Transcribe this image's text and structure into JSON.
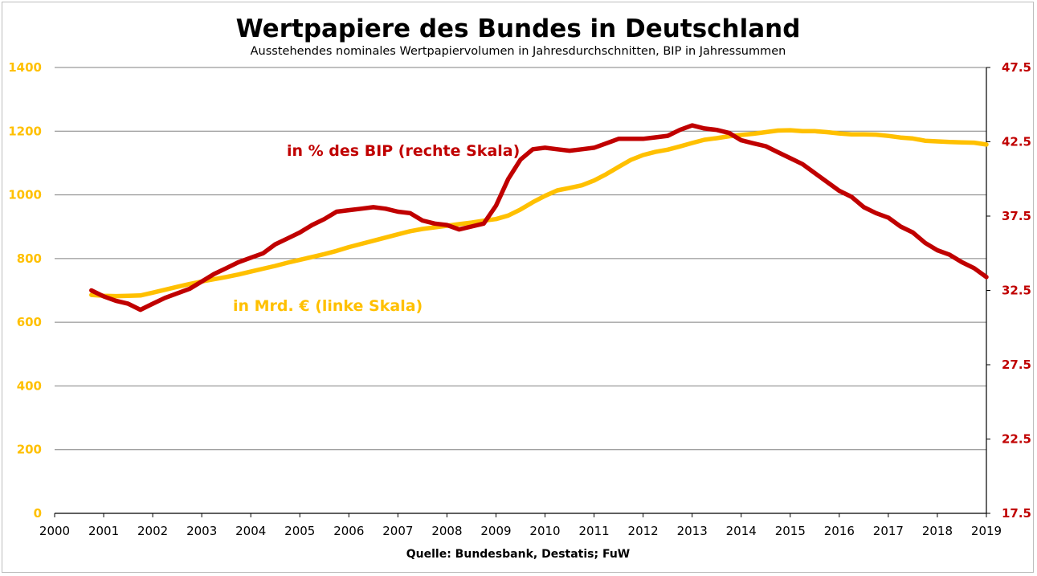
{
  "colors": {
    "left_series": "#FFC000",
    "right_series": "#C00000",
    "grid": "#808080",
    "axis": "#000000"
  },
  "chart_data": {
    "type": "line",
    "title": "Wertpapiere des Bundes in Deutschland",
    "subtitle": "Ausstehendes nominales Wertpapiervolumen in Jahresdurchschnitten, BIP in Jahressummen",
    "source": "Quelle: Bundesbank, Destatis; FuW",
    "x_ticks": [
      "2000",
      "2001",
      "2002",
      "2003",
      "2004",
      "2005",
      "2006",
      "2007",
      "2008",
      "2009",
      "2010",
      "2011",
      "2012",
      "2013",
      "2014",
      "2015",
      "2016",
      "2017",
      "2018",
      "2019"
    ],
    "x_range": [
      2000,
      2019
    ],
    "left_axis": {
      "ylim": [
        0,
        1400
      ],
      "ticks": [
        "0",
        "200",
        "400",
        "600",
        "800",
        "1000",
        "1200",
        "1400"
      ]
    },
    "right_axis": {
      "ylim": [
        17.5,
        47.5
      ],
      "ticks": [
        "17.5",
        "22.5",
        "27.5",
        "32.5",
        "37.5",
        "42.5",
        "47.5"
      ]
    },
    "annotations": {
      "left_series_label": "in Mrd. € (linke Skala)",
      "right_series_label": "in % des BIP (rechte Skala)"
    },
    "series": [
      {
        "name": "in Mrd. € (linke Skala)",
        "axis": "left",
        "x": [
          2000.75,
          2001.0,
          2001.25,
          2001.5,
          2001.75,
          2002.0,
          2002.25,
          2002.5,
          2002.75,
          2003.0,
          2003.25,
          2003.5,
          2003.75,
          2004.0,
          2004.25,
          2004.5,
          2004.75,
          2005.0,
          2005.25,
          2005.5,
          2005.75,
          2006.0,
          2006.25,
          2006.5,
          2006.75,
          2007.0,
          2007.25,
          2007.5,
          2007.75,
          2008.0,
          2008.25,
          2008.5,
          2008.75,
          2009.0,
          2009.25,
          2009.5,
          2009.75,
          2010.0,
          2010.25,
          2010.5,
          2010.75,
          2011.0,
          2011.25,
          2011.5,
          2011.75,
          2012.0,
          2012.25,
          2012.5,
          2012.75,
          2013.0,
          2013.25,
          2013.5,
          2013.75,
          2014.0,
          2014.25,
          2014.5,
          2014.75,
          2015.0,
          2015.25,
          2015.5,
          2015.75,
          2016.0,
          2016.25,
          2016.5,
          2016.75,
          2017.0,
          2017.25,
          2017.5,
          2017.75,
          2018.0,
          2018.25,
          2018.5,
          2018.75,
          2019.0
        ],
        "values": [
          686,
          683,
          682,
          683,
          684,
          693,
          702,
          711,
          720,
          728,
          735,
          742,
          750,
          759,
          768,
          777,
          787,
          796,
          805,
          814,
          824,
          836,
          846,
          856,
          866,
          876,
          886,
          893,
          898,
          903,
          908,
          913,
          919,
          924,
          935,
          954,
          977,
          997,
          1014,
          1022,
          1030,
          1045,
          1065,
          1088,
          1110,
          1125,
          1135,
          1142,
          1152,
          1163,
          1173,
          1178,
          1184,
          1188,
          1192,
          1197,
          1202,
          1203,
          1200,
          1200,
          1197,
          1193,
          1190,
          1190,
          1189,
          1185,
          1180,
          1177,
          1170,
          1168,
          1166,
          1165,
          1164,
          1158
        ]
      },
      {
        "name": "in % des BIP (rechte Skala)",
        "axis": "right",
        "x": [
          2000.75,
          2001.0,
          2001.25,
          2001.5,
          2001.75,
          2002.0,
          2002.25,
          2002.5,
          2002.75,
          2003.0,
          2003.25,
          2003.5,
          2003.75,
          2004.0,
          2004.25,
          2004.5,
          2004.75,
          2005.0,
          2005.25,
          2005.5,
          2005.75,
          2006.0,
          2006.25,
          2006.5,
          2006.75,
          2007.0,
          2007.25,
          2007.5,
          2007.75,
          2008.0,
          2008.25,
          2008.5,
          2008.75,
          2009.0,
          2009.25,
          2009.5,
          2009.75,
          2010.0,
          2010.25,
          2010.5,
          2010.75,
          2011.0,
          2011.25,
          2011.5,
          2011.75,
          2012.0,
          2012.25,
          2012.5,
          2012.75,
          2013.0,
          2013.25,
          2013.5,
          2013.75,
          2014.0,
          2014.25,
          2014.5,
          2014.75,
          2015.0,
          2015.25,
          2015.5,
          2015.75,
          2016.0,
          2016.25,
          2016.5,
          2016.75,
          2017.0,
          2017.25,
          2017.5,
          2017.75,
          2018.0,
          2018.25,
          2018.5,
          2018.75,
          2019.0
        ],
        "values": [
          32.5,
          32.1,
          31.8,
          31.6,
          31.2,
          31.6,
          32.0,
          32.3,
          32.6,
          33.1,
          33.6,
          34.0,
          34.4,
          34.7,
          35.0,
          35.6,
          36.0,
          36.4,
          36.9,
          37.3,
          37.8,
          37.9,
          38.0,
          38.1,
          38.0,
          37.8,
          37.7,
          37.2,
          37.0,
          36.9,
          36.6,
          36.8,
          37.0,
          38.2,
          40.0,
          41.3,
          42.0,
          42.1,
          42.0,
          41.9,
          42.0,
          42.1,
          42.4,
          42.7,
          42.7,
          42.7,
          42.8,
          42.9,
          43.3,
          43.6,
          43.4,
          43.3,
          43.1,
          42.6,
          42.4,
          42.2,
          41.8,
          41.4,
          41.0,
          40.4,
          39.8,
          39.2,
          38.8,
          38.1,
          37.7,
          37.4,
          36.8,
          36.4,
          35.7,
          35.2,
          34.9,
          34.4,
          34.0,
          33.4
        ]
      }
    ]
  }
}
